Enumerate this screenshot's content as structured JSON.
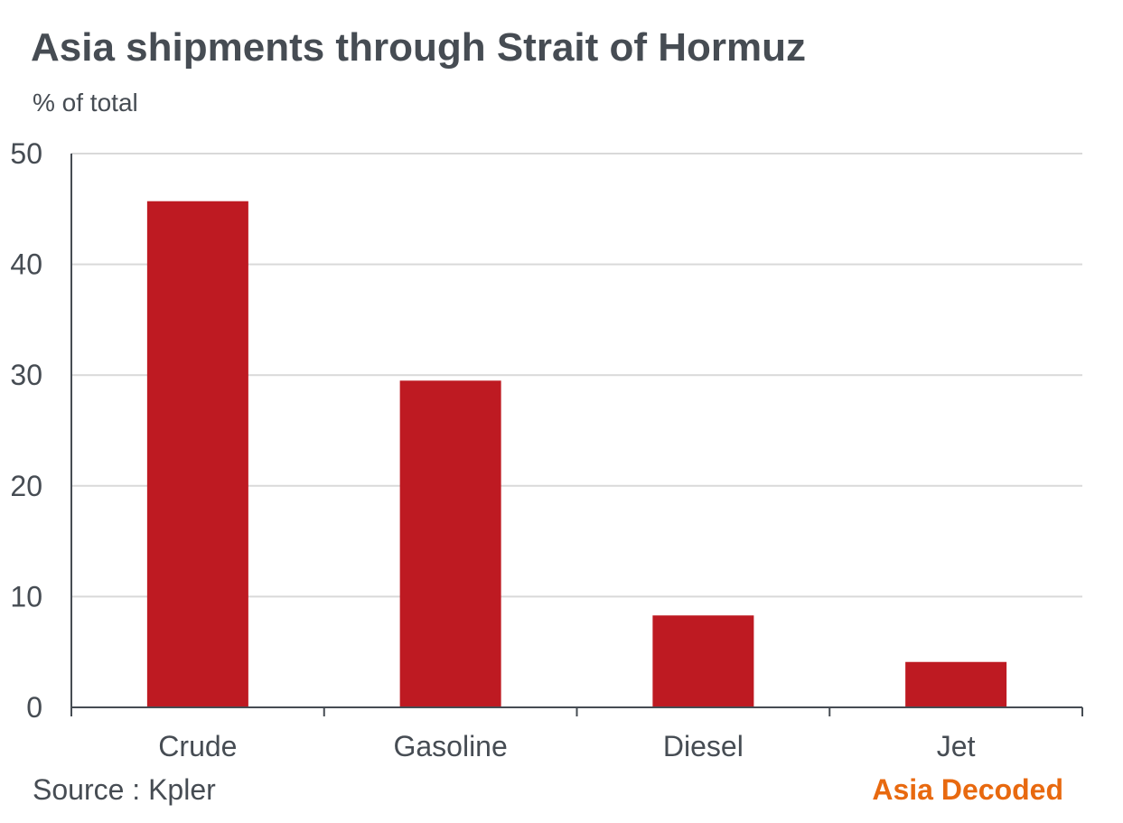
{
  "header": {
    "title": "Asia shipments through Strait of Hormuz",
    "subtitle": "% of total"
  },
  "footer": {
    "source": "Source : Kpler",
    "brand": "Asia Decoded"
  },
  "colors": {
    "bar": "#be1a22",
    "text": "#464c53",
    "grid": "#d9d9d9",
    "axis": "#464c53",
    "brand": "#e8690f"
  },
  "chart_data": {
    "type": "bar",
    "title": "Asia shipments through Strait of Hormuz",
    "ylabel": "% of total",
    "xlabel": "",
    "categories": [
      "Crude",
      "Gasoline",
      "Diesel",
      "Jet"
    ],
    "values": [
      45.7,
      29.5,
      8.3,
      4.1
    ],
    "ylim": [
      0,
      50
    ],
    "yticks": [
      0,
      10,
      20,
      30,
      40,
      50
    ],
    "grid": true,
    "legend": "none"
  }
}
